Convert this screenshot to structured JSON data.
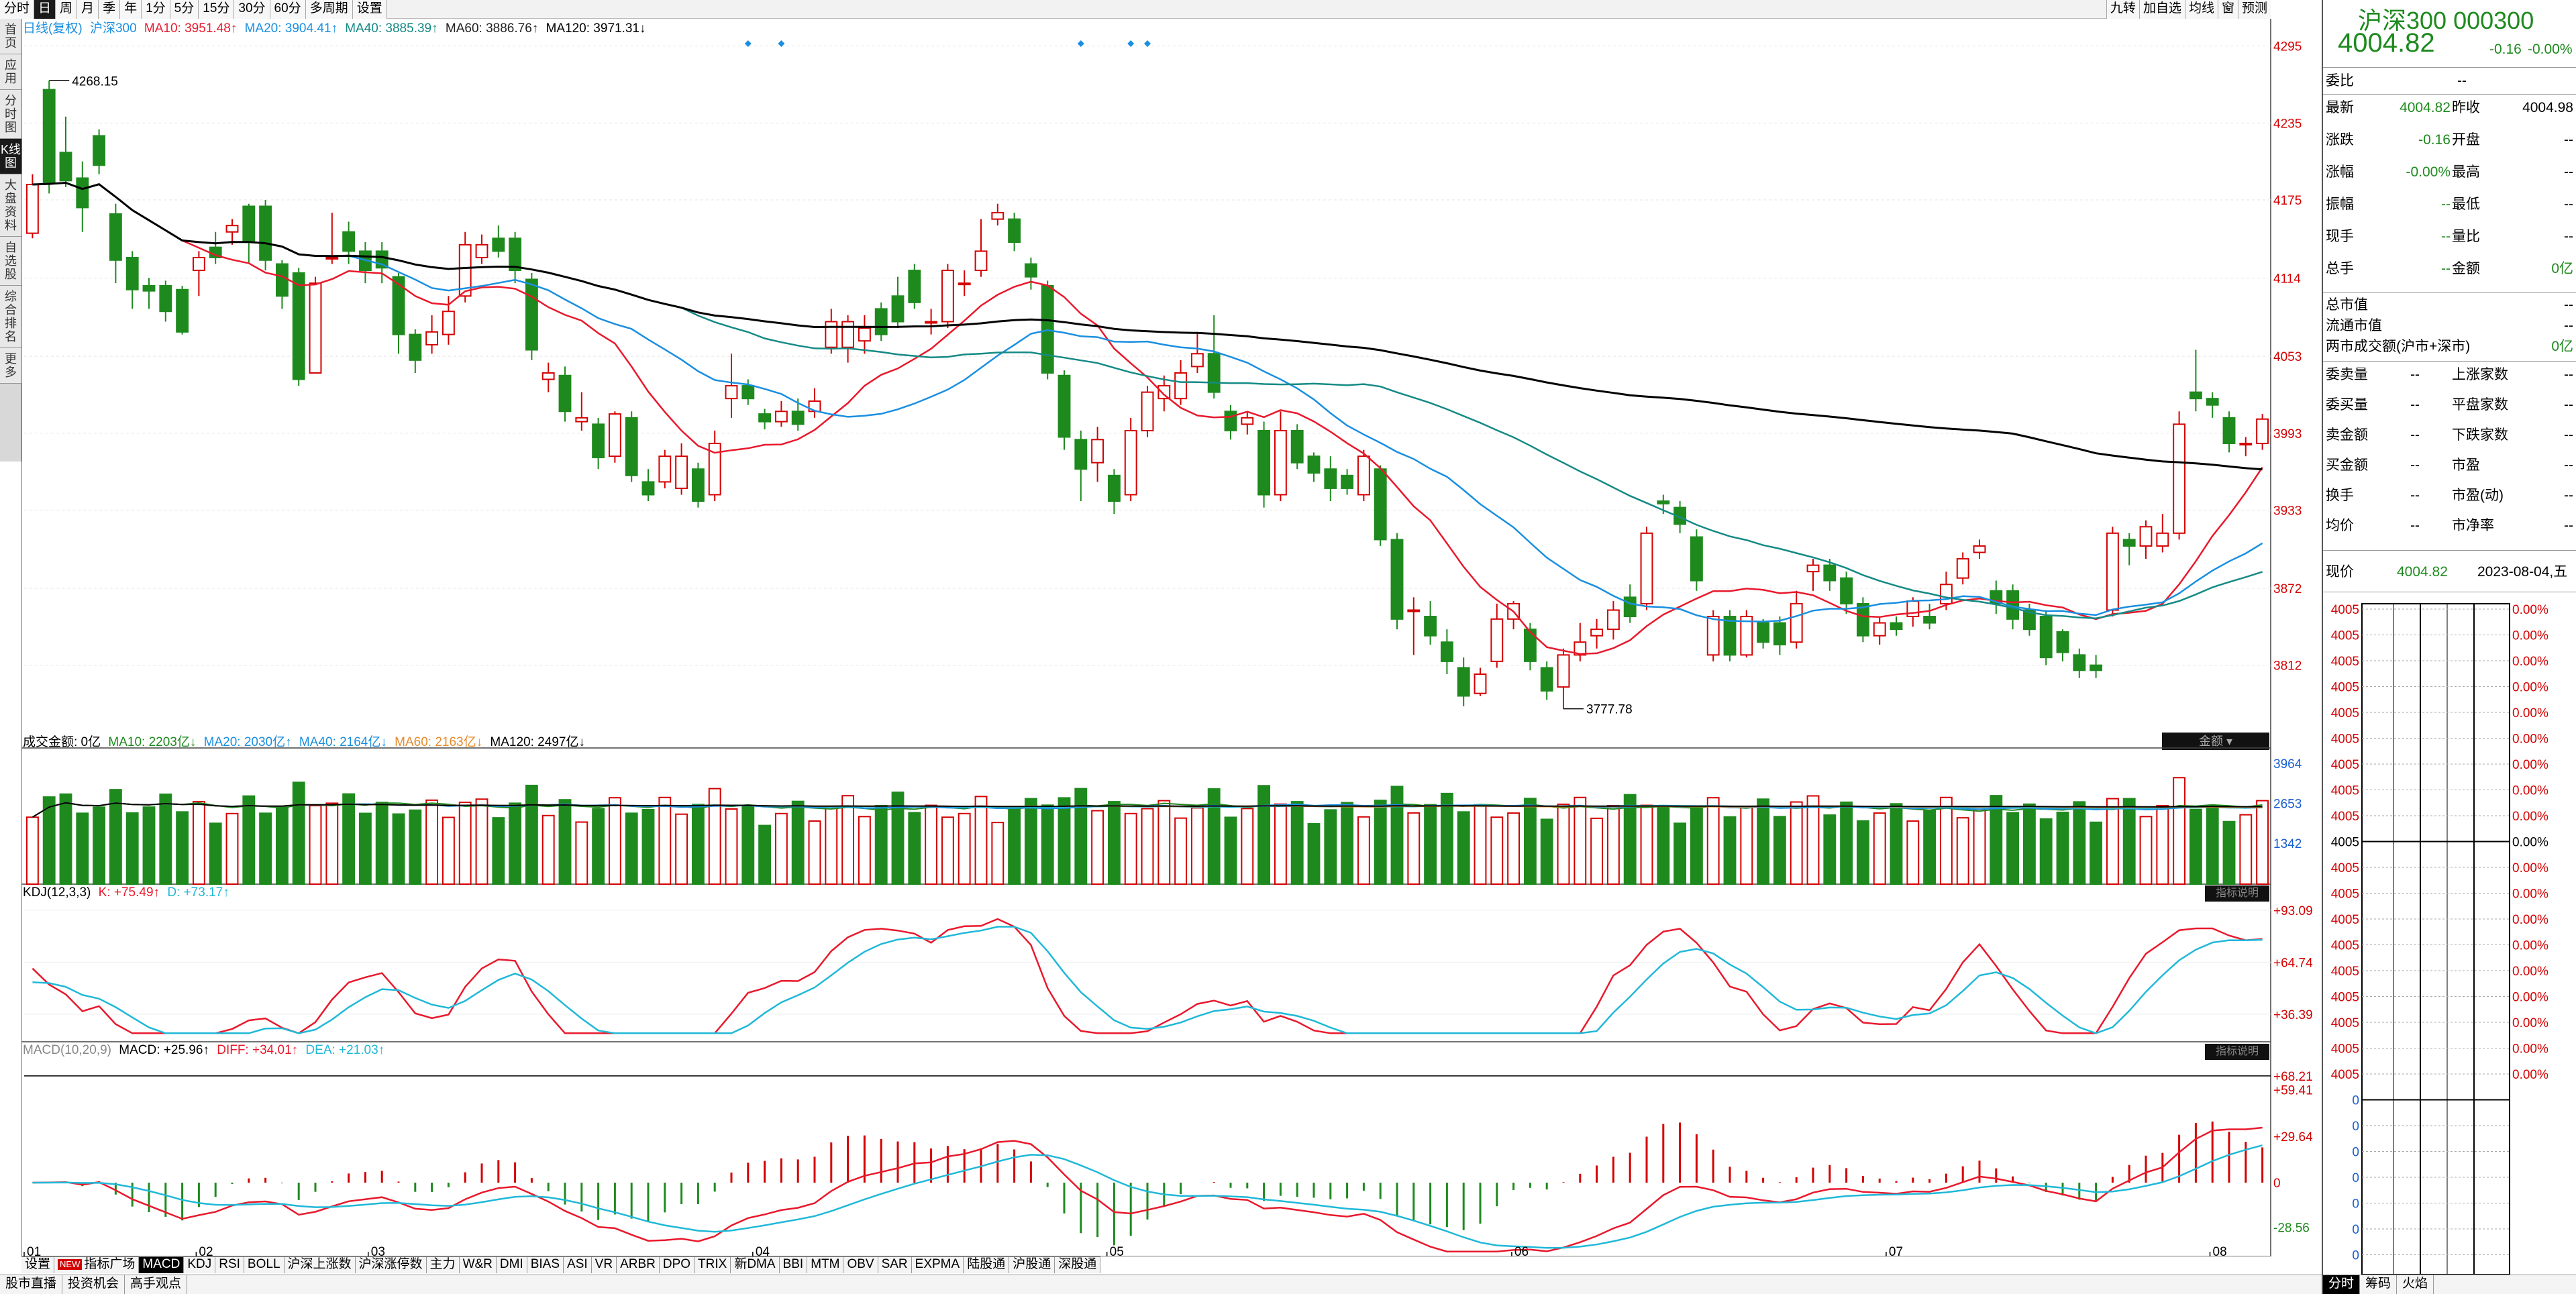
{
  "toolbar": {
    "period_tabs": [
      "分时",
      "日",
      "周",
      "月",
      "季",
      "年",
      "1分",
      "5分",
      "15分",
      "30分",
      "60分",
      "多周期",
      "设置"
    ],
    "active_period": "日",
    "right_tools": [
      "九转",
      "加自选",
      "均线",
      "窗",
      "预测"
    ]
  },
  "sidebar": {
    "items": [
      "首页",
      "应用",
      "分时图",
      "K线图",
      "大盘资料",
      "自选股",
      "综合排名",
      "更多"
    ],
    "active": "K线图"
  },
  "main_legend": {
    "mode": "日线(复权)",
    "name": "沪深300",
    "ma10": "MA10: 3951.48↑",
    "ma20": "MA20: 3904.41↑",
    "ma40": "MA40: 3885.39↑",
    "ma60": "MA60: 3886.76↑",
    "ma120": "MA120: 3971.31↓"
  },
  "price_axis": [
    "4295",
    "4235",
    "4175",
    "4114",
    "4053",
    "3993",
    "3933",
    "3872",
    "3812"
  ],
  "annotations": {
    "high": "4268.15",
    "low": "3777.78"
  },
  "volume_legend": {
    "label": "成交金额: 0亿",
    "ma10": "MA10: 2203亿↓",
    "ma20": "MA20: 2030亿↑",
    "ma40": "MA40: 2164亿↓",
    "ma60": "MA60: 2163亿↓",
    "ma120": "MA120: 2497亿↓",
    "button": "金额"
  },
  "volume_axis": [
    "3964",
    "2653",
    "1342"
  ],
  "kdj_legend": {
    "label": "KDJ(12,3,3)",
    "k": "K: +75.49↑",
    "d": "D: +73.17↑",
    "button": "指标说明"
  },
  "kdj_axis": [
    "+93.09",
    "+64.74",
    "+36.39"
  ],
  "macd_legend": {
    "label": "MACD(10,20,9)",
    "macd": "MACD: +25.96↑",
    "diff": "DIFF: +34.01↑",
    "dea": "DEA: +21.03↑",
    "button": "指标说明"
  },
  "macd_axis": [
    "+68.21",
    "+59.41",
    "+29.64",
    "0",
    "-28.56"
  ],
  "date_axis": [
    "01",
    "02",
    "03",
    "04",
    "05",
    "06",
    "07",
    "08"
  ],
  "indicator_tabs": [
    "设置",
    "指标广场",
    "MACD",
    "KDJ",
    "RSI",
    "BOLL",
    "沪深上涨数",
    "沪深涨停数",
    "主力",
    "W&R",
    "DMI",
    "BIAS",
    "ASI",
    "VR",
    "ARBR",
    "DPO",
    "TRIX",
    "新DMA",
    "BBI",
    "MTM",
    "OBV",
    "SAR",
    "EXPMA",
    "陆股通",
    "沪股通",
    "深股通"
  ],
  "active_indicator": "MACD",
  "new_badge": "NEW",
  "bottom_tabs": [
    "股市直播",
    "投资机会",
    "高手观点"
  ],
  "panel": {
    "name": "沪深300",
    "code": "000300",
    "price": "4004.82",
    "change": "-0.16",
    "change_pct": "-0.00%",
    "webi_label": "委比",
    "webi_value": "--",
    "rows": [
      [
        "最新",
        "4004.82",
        "昨收",
        "4004.98"
      ],
      [
        "涨跌",
        "-0.16",
        "开盘",
        "--"
      ],
      [
        "涨幅",
        "-0.00%",
        "最高",
        "--"
      ],
      [
        "振幅",
        "--",
        "最低",
        "--"
      ],
      [
        "现手",
        "--",
        "量比",
        "--"
      ],
      [
        "总手",
        "--",
        "金额",
        "0亿"
      ]
    ],
    "rows2": [
      [
        "总市值",
        "--"
      ],
      [
        "流通市值",
        "--"
      ],
      [
        "两市成交额(沪市+深市)",
        "0亿"
      ]
    ],
    "rows3": [
      [
        "委卖量",
        "--",
        "上涨家数",
        "--"
      ],
      [
        "委买量",
        "--",
        "平盘家数",
        "--"
      ],
      [
        "卖金额",
        "--",
        "下跌家数",
        "--"
      ],
      [
        "买金额",
        "--",
        "市盈",
        "--"
      ],
      [
        "换手",
        "--",
        "市盈(动)",
        "--"
      ],
      [
        "均价",
        "--",
        "市净率",
        "--"
      ]
    ],
    "now_label": "现价",
    "now_value": "4004.82",
    "date": "2023-08-04,五",
    "mini_left": [
      "4005",
      "4005",
      "4005",
      "4005",
      "4005",
      "4005",
      "4005",
      "4005",
      "4005",
      "4005",
      "4005",
      "4005",
      "4005",
      "4005",
      "4005",
      "4005",
      "4005",
      "4005",
      "4005",
      "0",
      "0",
      "0",
      "0",
      "0",
      "0",
      "0",
      "0"
    ],
    "mini_right": [
      "0.00%",
      "0.00%",
      "0.00%",
      "0.00%",
      "0.00%",
      "0.00%",
      "0.00%",
      "0.00%",
      "0.00%",
      "0.00%",
      "0.00%",
      "0.00%",
      "0.00%",
      "0.00%",
      "0.00%",
      "0.00%",
      "0.00%",
      "0.00%",
      "0.00%"
    ],
    "bottom_tabs": [
      "分时",
      "筹码",
      "火焰"
    ]
  },
  "colors": {
    "up": "#d40000",
    "down": "#1e8a1e",
    "ma10": "#e8192c",
    "ma20": "#1a8fe0",
    "ma40": "#158a85",
    "ma60": "#e88a2a",
    "ma120": "#000000",
    "k": "#e8192c",
    "d": "#20b8d8"
  },
  "chart_data": {
    "type": "candlestick",
    "ylim": [
      3760,
      4310
    ],
    "candles": [
      [
        4149,
        4187,
        4195,
        4145
      ],
      [
        4261,
        4188,
        4268,
        4180
      ],
      [
        4212,
        4190,
        4240,
        4185
      ],
      [
        4192,
        4169,
        4205,
        4150
      ],
      [
        4225,
        4202,
        4230,
        4195
      ],
      [
        4164,
        4128,
        4172,
        4110
      ],
      [
        4130,
        4105,
        4135,
        4090
      ],
      [
        4108,
        4104,
        4114,
        4090
      ],
      [
        4108,
        4088,
        4112,
        4080
      ],
      [
        4105,
        4072,
        4108,
        4070
      ],
      [
        4120,
        4130,
        4135,
        4100
      ],
      [
        4138,
        4130,
        4150,
        4125
      ],
      [
        4150,
        4155,
        4160,
        4140
      ],
      [
        4170,
        4142,
        4172,
        4125
      ],
      [
        4170,
        4128,
        4175,
        4120
      ],
      [
        4125,
        4100,
        4128,
        4090
      ],
      [
        4118,
        4035,
        4122,
        4030
      ],
      [
        4040,
        4110,
        4115,
        4040
      ],
      [
        4130,
        4130,
        4165,
        4125
      ],
      [
        4150,
        4135,
        4158,
        4125
      ],
      [
        4135,
        4120,
        4142,
        4110
      ],
      [
        4135,
        4122,
        4142,
        4110
      ],
      [
        4115,
        4070,
        4118,
        4055
      ],
      [
        4070,
        4050,
        4074,
        4040
      ],
      [
        4062,
        4072,
        4085,
        4055
      ],
      [
        4070,
        4088,
        4100,
        4062
      ],
      [
        4100,
        4140,
        4150,
        4095
      ],
      [
        4130,
        4140,
        4148,
        4125
      ],
      [
        4145,
        4135,
        4155,
        4130
      ],
      [
        4145,
        4120,
        4150,
        4110
      ],
      [
        4113,
        4058,
        4118,
        4050
      ],
      [
        4035,
        4040,
        4048,
        4025
      ],
      [
        4038,
        4010,
        4045,
        4002
      ],
      [
        4002,
        4005,
        4025,
        3995
      ],
      [
        4000,
        3974,
        4005,
        3965
      ],
      [
        3975,
        4008,
        4010,
        3970
      ],
      [
        4005,
        3960,
        4010,
        3955
      ],
      [
        3955,
        3945,
        3965,
        3940
      ],
      [
        3955,
        3975,
        3980,
        3950
      ],
      [
        3950,
        3975,
        3985,
        3945
      ],
      [
        3965,
        3940,
        3970,
        3935
      ],
      [
        3945,
        3985,
        3995,
        3940
      ],
      [
        4020,
        4030,
        4055,
        4005
      ],
      [
        4030,
        4020,
        4035,
        4015
      ],
      [
        4008,
        4002,
        4012,
        3996
      ],
      [
        4002,
        4010,
        4018,
        3998
      ],
      [
        4010,
        4000,
        4020,
        3995
      ],
      [
        4010,
        4018,
        4028,
        4005
      ],
      [
        4060,
        4080,
        4090,
        4055
      ],
      [
        4060,
        4080,
        4085,
        4048
      ],
      [
        4065,
        4075,
        4085,
        4055
      ],
      [
        4090,
        4070,
        4095,
        4065
      ],
      [
        4100,
        4080,
        4115,
        4075
      ],
      [
        4120,
        4095,
        4125,
        4090
      ],
      [
        4080,
        4080,
        4090,
        4070
      ],
      [
        4080,
        4120,
        4125,
        4075
      ],
      [
        4110,
        4110,
        4120,
        4100
      ],
      [
        4120,
        4135,
        4160,
        4115
      ],
      [
        4160,
        4165,
        4172,
        4155
      ],
      [
        4160,
        4142,
        4165,
        4135
      ],
      [
        4125,
        4115,
        4130,
        4105
      ],
      [
        4108,
        4040,
        4112,
        4035
      ],
      [
        4038,
        3990,
        4042,
        3980
      ],
      [
        3988,
        3965,
        3995,
        3940
      ],
      [
        3970,
        3988,
        3998,
        3955
      ],
      [
        3960,
        3940,
        3965,
        3930
      ],
      [
        3945,
        3995,
        4005,
        3940
      ],
      [
        3995,
        4025,
        4030,
        3990
      ],
      [
        4020,
        4030,
        4038,
        4010
      ],
      [
        4020,
        4040,
        4050,
        4015
      ],
      [
        4045,
        4055,
        4072,
        4040
      ],
      [
        4055,
        4025,
        4085,
        4020
      ],
      [
        4010,
        3995,
        4015,
        3988
      ],
      [
        4000,
        4005,
        4010,
        3992
      ],
      [
        3995,
        3945,
        4002,
        3935
      ],
      [
        3945,
        3995,
        4010,
        3940
      ],
      [
        3995,
        3970,
        4000,
        3965
      ],
      [
        3975,
        3962,
        3978,
        3955
      ],
      [
        3965,
        3950,
        3975,
        3940
      ],
      [
        3960,
        3950,
        3965,
        3945
      ],
      [
        3945,
        3975,
        3980,
        3940
      ],
      [
        3965,
        3910,
        3968,
        3905
      ],
      [
        3910,
        3848,
        3915,
        3840
      ],
      [
        3855,
        3855,
        3865,
        3820
      ],
      [
        3850,
        3835,
        3862,
        3828
      ],
      [
        3830,
        3815,
        3840,
        3805
      ],
      [
        3810,
        3788,
        3818,
        3780
      ],
      [
        3790,
        3805,
        3810,
        3788
      ],
      [
        3815,
        3848,
        3860,
        3810
      ],
      [
        3848,
        3860,
        3862,
        3840
      ],
      [
        3840,
        3815,
        3845,
        3808
      ],
      [
        3810,
        3792,
        3815,
        3785
      ],
      [
        3795,
        3820,
        3825,
        3778
      ],
      [
        3820,
        3830,
        3845,
        3815
      ],
      [
        3835,
        3840,
        3848,
        3825
      ],
      [
        3840,
        3855,
        3862,
        3832
      ],
      [
        3865,
        3850,
        3875,
        3845
      ],
      [
        3860,
        3915,
        3920,
        3855
      ],
      [
        3940,
        3938,
        3945,
        3930
      ],
      [
        3935,
        3922,
        3940,
        3915
      ],
      [
        3912,
        3878,
        3918,
        3870
      ],
      [
        3820,
        3850,
        3855,
        3815
      ],
      [
        3850,
        3820,
        3855,
        3815
      ],
      [
        3820,
        3850,
        3855,
        3818
      ],
      [
        3845,
        3830,
        3848,
        3825
      ],
      [
        3845,
        3828,
        3850,
        3820
      ],
      [
        3830,
        3860,
        3870,
        3825
      ],
      [
        3885,
        3890,
        3895,
        3870
      ],
      [
        3890,
        3878,
        3895,
        3870
      ],
      [
        3880,
        3860,
        3885,
        3852
      ],
      [
        3860,
        3835,
        3865,
        3830
      ],
      [
        3835,
        3845,
        3850,
        3828
      ],
      [
        3845,
        3840,
        3850,
        3835
      ],
      [
        3850,
        3862,
        3865,
        3842
      ],
      [
        3850,
        3845,
        3860,
        3840
      ],
      [
        3860,
        3875,
        3885,
        3855
      ],
      [
        3880,
        3895,
        3900,
        3875
      ],
      [
        3900,
        3905,
        3910,
        3895
      ],
      [
        3870,
        3860,
        3878,
        3852
      ],
      [
        3870,
        3848,
        3875,
        3840
      ],
      [
        3855,
        3840,
        3860,
        3835
      ],
      [
        3850,
        3818,
        3855,
        3812
      ],
      [
        3838,
        3822,
        3840,
        3815
      ],
      [
        3820,
        3808,
        3825,
        3802
      ],
      [
        3812,
        3808,
        3820,
        3802
      ],
      [
        3855,
        3915,
        3920,
        3850
      ],
      [
        3910,
        3905,
        3915,
        3890
      ],
      [
        3905,
        3920,
        3925,
        3895
      ],
      [
        3905,
        3915,
        3930,
        3900
      ],
      [
        3915,
        4000,
        4010,
        3910
      ],
      [
        4025,
        4020,
        4058,
        4010
      ],
      [
        4020,
        4015,
        4025,
        4005
      ],
      [
        4005,
        3985,
        4010,
        3978
      ],
      [
        3985,
        3985,
        3990,
        3975
      ],
      [
        3985,
        4004,
        4008,
        3980
      ]
    ],
    "ma_series_names": [
      "MA10",
      "MA20",
      "MA40",
      "MA60",
      "MA120"
    ]
  }
}
